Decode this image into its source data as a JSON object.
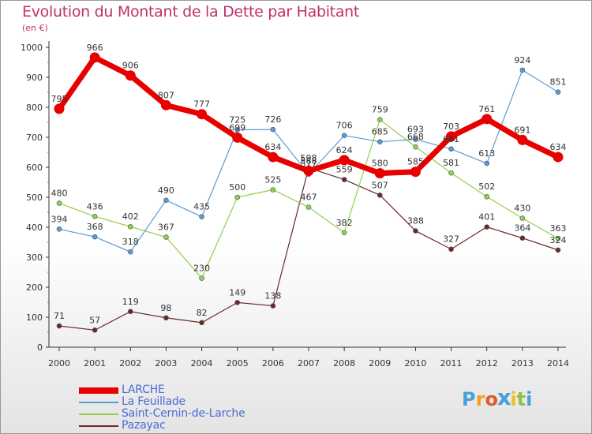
{
  "title": "Evolution du Montant de la Dette par Habitant",
  "subtitle": "(en €)",
  "logo_text": "Proxiti",
  "chart_data": {
    "type": "line",
    "x": [
      2000,
      2001,
      2002,
      2003,
      2004,
      2005,
      2006,
      2007,
      2008,
      2009,
      2010,
      2011,
      2012,
      2013,
      2014
    ],
    "ylim": [
      0,
      1000
    ],
    "yticks": [
      0,
      100,
      200,
      300,
      400,
      500,
      600,
      700,
      800,
      900,
      1000
    ],
    "grid": false,
    "legend_position": "bottom-left",
    "series": [
      {
        "name": "LARCHE",
        "color": "#e80000",
        "emphasis": true,
        "values": [
          795,
          966,
          906,
          807,
          777,
          699,
          634,
          588,
          624,
          580,
          585,
          703,
          761,
          691,
          634
        ]
      },
      {
        "name": "La Feuillade",
        "color": "#5b9bd5",
        "values": [
          394,
          368,
          318,
          490,
          435,
          725,
          726,
          577,
          706,
          685,
          693,
          661,
          613,
          924,
          851
        ]
      },
      {
        "name": "Saint-Cernin-de-Larche",
        "color": "#90d050",
        "values": [
          480,
          436,
          402,
          367,
          230,
          500,
          525,
          467,
          382,
          759,
          668,
          581,
          502,
          430,
          363
        ]
      },
      {
        "name": "Pazayac",
        "color": "#6b2a2a",
        "values": [
          71,
          57,
          119,
          98,
          82,
          149,
          138,
          598,
          559,
          507,
          388,
          327,
          401,
          364,
          324
        ]
      }
    ]
  }
}
